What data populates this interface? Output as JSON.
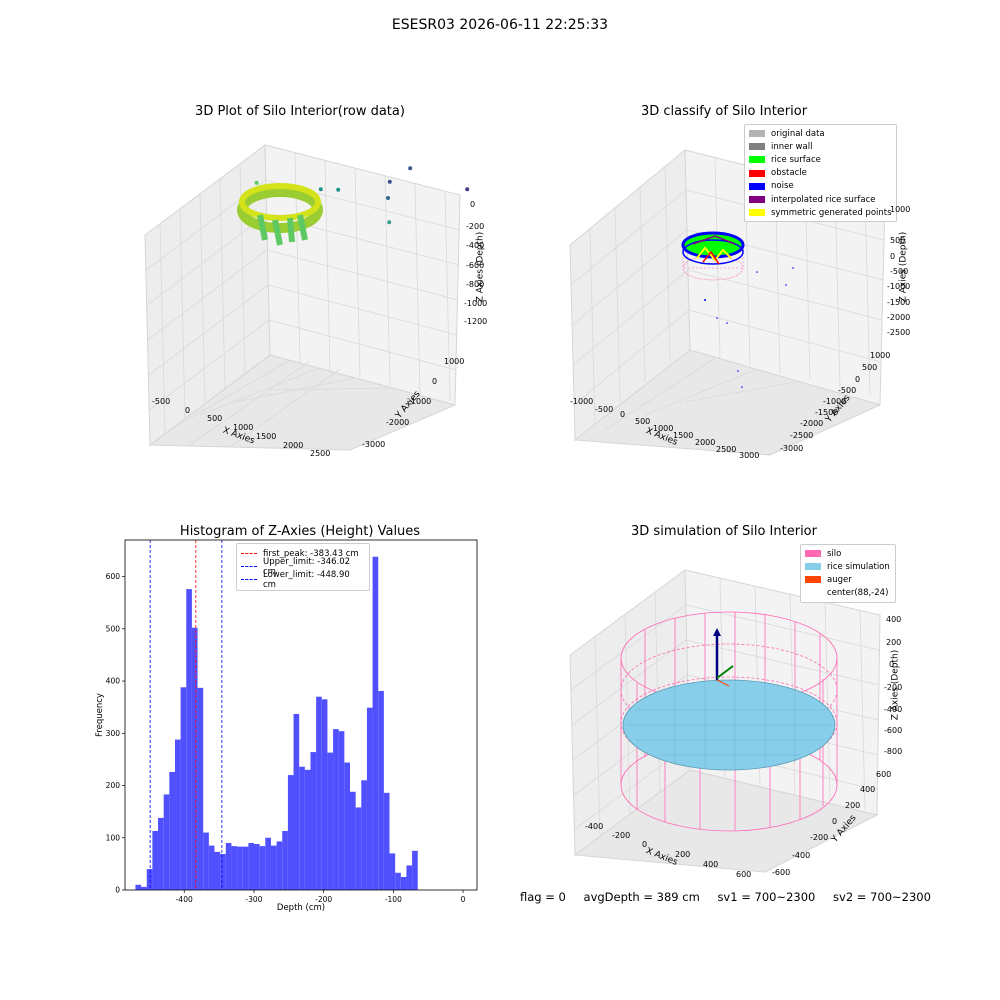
{
  "suptitle": "ESESR03 2026-06-11 22:25:33",
  "status": {
    "flag": "flag = 0",
    "avg_depth": "avgDepth = 389 cm",
    "sv1": "sv1 = 700~2300",
    "sv2": "sv2 = 700~2300"
  },
  "chart_data": [
    {
      "type": "scatter",
      "title": "3D Plot of Silo Interior(row data)",
      "xlabel": "X Axies",
      "ylabel": "Y Axies",
      "zlabel": "Z Axies (Depth)",
      "x_ticks": [
        "-500",
        "0",
        "500",
        "1000",
        "1500",
        "2000",
        "2500"
      ],
      "y_ticks": [
        "1000",
        "0",
        "-1000",
        "-2000",
        "-3000"
      ],
      "z_ticks": [
        "0",
        "-200",
        "-400",
        "-600",
        "-800",
        "-1000",
        "-1200"
      ],
      "colormap": [
        "#440154",
        "#3b528b",
        "#21918c",
        "#5ec962",
        "#fde725"
      ],
      "points": [
        {
          "x": 300,
          "y": 500,
          "z": -500,
          "c": "#5ec962"
        },
        {
          "x": 900,
          "y": -200,
          "z": -700,
          "c": "#21918c"
        },
        {
          "x": 1100,
          "y": -300,
          "z": -750,
          "c": "#21918c"
        },
        {
          "x": 1600,
          "y": -800,
          "z": -650,
          "c": "#3b9e8c"
        },
        {
          "x": 1500,
          "y": -1000,
          "z": -900,
          "c": "#31688e"
        },
        {
          "x": 1400,
          "y": -1300,
          "z": -1100,
          "c": "#3b528b"
        },
        {
          "x": 1600,
          "y": -1500,
          "z": -1300,
          "c": "#3b528b"
        },
        {
          "x": 2100,
          "y": -2200,
          "z": -1350,
          "c": "#443983"
        },
        {
          "x": 2500,
          "y": -2800,
          "z": -1450,
          "c": "#440154"
        },
        {
          "x": 2700,
          "y": -3100,
          "z": -1450,
          "c": "#440154"
        }
      ]
    },
    {
      "type": "scatter",
      "title": "3D classify of Silo Interior",
      "xlabel": "X Axies",
      "ylabel": "Y Axies",
      "zlabel": "Z Axies (Depth)",
      "x_ticks": [
        "-1000",
        "-500",
        "0",
        "500",
        "1000",
        "1500",
        "2000",
        "2500",
        "3000"
      ],
      "y_ticks": [
        "1000",
        "500",
        "0",
        "-500",
        "-1000",
        "-1500",
        "-2000",
        "-2500",
        "-3000"
      ],
      "z_ticks": [
        "1000",
        "500",
        "0",
        "-500",
        "-1000",
        "-1500",
        "-2000",
        "-2500"
      ],
      "legend": [
        {
          "label": "original data",
          "color": "#b3b3b3"
        },
        {
          "label": "inner wall",
          "color": "#808080"
        },
        {
          "label": "rice surface",
          "color": "#00ff00"
        },
        {
          "label": "obstacle",
          "color": "#ff0000"
        },
        {
          "label": "noise",
          "color": "#0000ff"
        },
        {
          "label": "interpolated rice surface",
          "color": "#800080"
        },
        {
          "label": "symmetric generated points",
          "color": "#ffff00"
        }
      ]
    },
    {
      "type": "bar",
      "title": "Histogram of Z-Axies (Height) Values",
      "xlabel": "Depth (cm)",
      "ylabel": "Frequency",
      "xlim": [
        -485,
        20
      ],
      "ylim": [
        0,
        670
      ],
      "x_ticks": [
        -400,
        -300,
        -200,
        -100,
        0
      ],
      "y_ticks": [
        0,
        100,
        200,
        300,
        400,
        500,
        600
      ],
      "bar_color": "#5050ff",
      "bin_start": -470,
      "bin_width": 8.1,
      "values": [
        10,
        6,
        40,
        113,
        138,
        183,
        226,
        288,
        388,
        576,
        502,
        387,
        110,
        85,
        73,
        69,
        90,
        84,
        83,
        83,
        90,
        88,
        84,
        100,
        85,
        93,
        113,
        220,
        337,
        236,
        230,
        264,
        370,
        365,
        263,
        308,
        304,
        244,
        188,
        158,
        210,
        349,
        638,
        381,
        186,
        70,
        33,
        25,
        47,
        75
      ],
      "lines": [
        {
          "label": "first_peak: -383.43 cm",
          "x": -383.43,
          "color": "#ff0000"
        },
        {
          "label": "Upper_limit: -346.02 cm",
          "x": -346.02,
          "color": "#0000ff"
        },
        {
          "label": "Lower_limit: -448.90 cm",
          "x": -448.9,
          "color": "#0000ff"
        }
      ]
    },
    {
      "type": "scatter",
      "title": "3D simulation of Silo Interior",
      "xlabel": "X Axies",
      "ylabel": "Y Axies",
      "zlabel": "Z Axies (Depth)",
      "x_ticks": [
        "-400",
        "-200",
        "0",
        "200",
        "400",
        "600"
      ],
      "y_ticks": [
        "600",
        "400",
        "200",
        "0",
        "-200",
        "-400",
        "-600"
      ],
      "z_ticks": [
        "400",
        "200",
        "0",
        "-200",
        "-400",
        "-600",
        "-800"
      ],
      "legend": [
        {
          "label": "silo",
          "color": "#ff69b4"
        },
        {
          "label": "rice simulation",
          "color": "#87ceeb"
        },
        {
          "label": "auger",
          "color": "#ff4500"
        },
        {
          "label": "center(88,-24)",
          "color": "#ffffff"
        }
      ]
    }
  ]
}
